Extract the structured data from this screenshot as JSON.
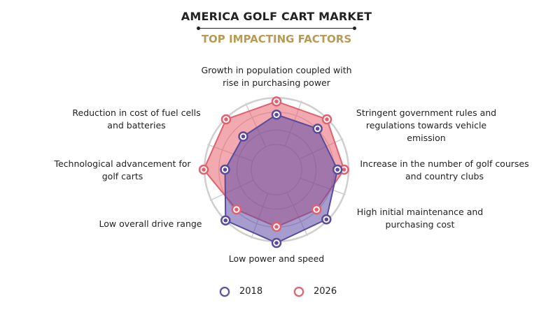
{
  "chart_data": {
    "type": "radar",
    "title": "AMERICA GOLF CART MARKET",
    "subtitle": "TOP IMPACTING FACTORS",
    "categories": [
      "Growth in population coupled with rise in purchasing power",
      "Stringent government rules and regulations towards vehicle emission",
      "Increase in the number of golf courses and country clubs",
      "High initial maintenance and purchasing cost",
      "Low power and speed",
      "Low overall drive range",
      "Technological advancement for golf carts",
      "Reduction in cost of fuel cells and batteries"
    ],
    "series": [
      {
        "name": "2018",
        "color": "#5a4a9c",
        "values": [
          75,
          79,
          83,
          96,
          100,
          98,
          70,
          64
        ]
      },
      {
        "name": "2026",
        "color": "#e0606e",
        "values": [
          93,
          97,
          92,
          77,
          78,
          77,
          99,
          97
        ]
      }
    ],
    "rlim": [
      0,
      100
    ],
    "grid": true,
    "legend": "bottom"
  },
  "labels": {
    "l0a": "Growth in population coupled with",
    "l0b": "rise in purchasing power",
    "l1a": "Stringent government rules and",
    "l1b": "regulations towards vehicle emission",
    "l2a": "Increase in the number of golf courses",
    "l2b": "and country clubs",
    "l3a": "High initial maintenance and",
    "l3b": "purchasing cost",
    "l4a": "Low power and speed",
    "l5a": "Low overall drive range",
    "l6a": "Technological advancement for",
    "l6b": "golf carts",
    "l7a": "Reduction in cost of fuel cells",
    "l7b": "and batteries"
  }
}
